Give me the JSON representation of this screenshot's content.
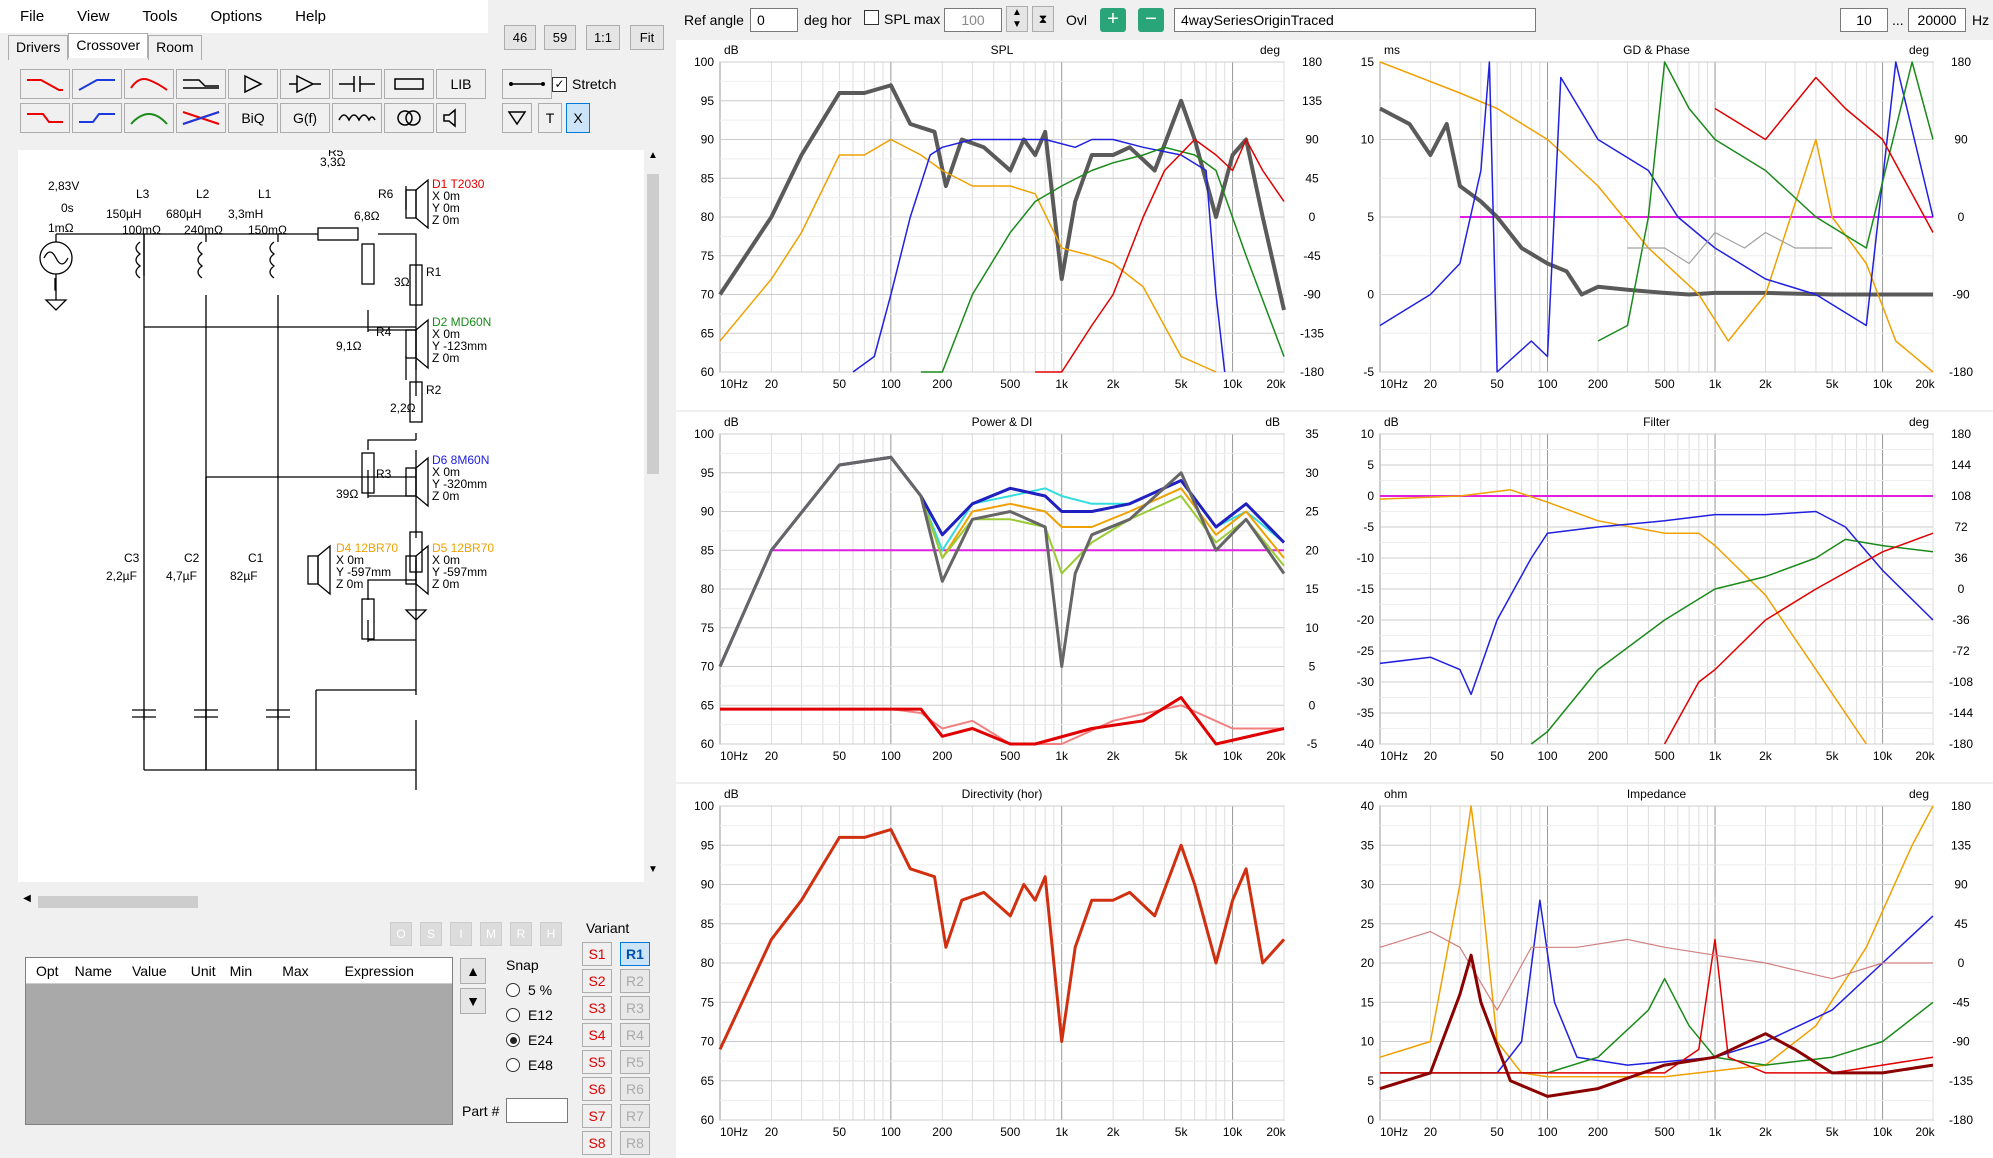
{
  "menu": [
    "File",
    "View",
    "Tools",
    "Options",
    "Help"
  ],
  "zoom_buttons": [
    "46",
    "59",
    "1:1",
    "Fit"
  ],
  "tabs": [
    "Drivers",
    "Crossover",
    "Room"
  ],
  "toolbox": {
    "lib": "LIB",
    "biq": "BiQ",
    "gf": "G(f)",
    "t": "T",
    "x": "X",
    "stretch": "Stretch"
  },
  "schematic": {
    "source": {
      "voltage": "2,83V",
      "phase": "0s",
      "resistance": "1mΩ"
    },
    "inductors": [
      {
        "name": "L3",
        "value": "150µH",
        "res": "100mΩ"
      },
      {
        "name": "L2",
        "value": "680µH",
        "res": "240mΩ"
      },
      {
        "name": "L1",
        "value": "3,3mH",
        "res": "150mΩ"
      }
    ],
    "resistors": [
      {
        "name": "R5",
        "value": "3,3Ω"
      },
      {
        "name": "R6",
        "value": "6,8Ω"
      },
      {
        "name": "R1",
        "value": "3Ω"
      },
      {
        "name": "R4",
        "value": "9,1Ω"
      },
      {
        "name": "R2",
        "value": "2,2Ω"
      },
      {
        "name": "R3",
        "value": "39Ω"
      }
    ],
    "capacitors": [
      {
        "name": "C3",
        "value": "2,2µF"
      },
      {
        "name": "C2",
        "value": "4,7µF"
      },
      {
        "name": "C1",
        "value": "82µF"
      }
    ],
    "drivers": [
      {
        "name": "D1 T2030",
        "color": "#e00000",
        "x": "X 0m",
        "y": "Y 0m",
        "z": "Z 0m"
      },
      {
        "name": "D2 MD60N",
        "color": "#1a8a1a",
        "x": "X 0m",
        "y": "Y -123mm",
        "z": "Z 0m"
      },
      {
        "name": "D6 8M60N",
        "color": "#2020e0",
        "x": "X 0m",
        "y": "Y -320mm",
        "z": "Z 0m"
      },
      {
        "name": "D4 12BR70",
        "color": "#f0a000",
        "x": "X 0m",
        "y": "Y -597mm",
        "z": "Z 0m"
      },
      {
        "name": "D5 12BR70",
        "color": "#f0a000",
        "x": "X 0m",
        "y": "Y -597mm",
        "z": "Z 0m"
      }
    ]
  },
  "opt_grid": {
    "columns": [
      "Opt",
      "Name",
      "Value",
      "Unit",
      "Min",
      "Max",
      "Expression"
    ]
  },
  "lock_buttons": [
    "O",
    "S",
    "I",
    "M",
    "R",
    "H"
  ],
  "snap": {
    "label": "Snap",
    "options": [
      "5 %",
      "E12",
      "E24",
      "E48"
    ],
    "selected": "E24"
  },
  "part_label": "Part #",
  "variant": {
    "label": "Variant",
    "s": [
      "S1",
      "S2",
      "S3",
      "S4",
      "S5",
      "S6",
      "S7",
      "S8"
    ],
    "r": [
      "R1",
      "R2",
      "R3",
      "R4",
      "R5",
      "R6",
      "R7",
      "R8"
    ],
    "active_s": "S1",
    "active_r": "R1"
  },
  "topbar": {
    "ref_angle_label": "Ref angle",
    "ref_angle": "0",
    "deg_hor": "deg hor",
    "spl_max_label": "SPL max",
    "spl_max": "100",
    "ovl": "Ovl",
    "project": "4waySeriesOriginTraced",
    "f_min": "10",
    "dots": "...",
    "f_max": "20000",
    "hz": "Hz"
  },
  "freq_ticks": [
    "10Hz",
    "20",
    "50",
    "100",
    "200",
    "500",
    "1k",
    "2k",
    "5k",
    "10k",
    "20k"
  ],
  "graphs": [
    {
      "id": "spl",
      "title": "SPL",
      "lunit": "dB",
      "runit": "deg",
      "left": [
        "95",
        "90",
        "85",
        "80",
        "75",
        "70",
        "65",
        "60"
      ],
      "ltop": "100",
      "right": [
        "180",
        "135",
        "90",
        "45",
        "0",
        "-45",
        "-90",
        "-135",
        "-180"
      ]
    },
    {
      "id": "gd",
      "title": "GD & Phase",
      "lunit": "ms",
      "runit": "deg",
      "left": [
        "15",
        "10",
        "5",
        "0",
        "-5"
      ],
      "right": [
        "180",
        "90",
        "0",
        "-90",
        "-180"
      ]
    },
    {
      "id": "power",
      "title": "Power & DI",
      "lunit": "dB",
      "runit": "dB",
      "left": [
        "100",
        "95",
        "90",
        "85",
        "80",
        "75",
        "70",
        "65",
        "60"
      ],
      "right": [
        "35",
        "30",
        "25",
        "20",
        "15",
        "10",
        "5",
        "0",
        "-5"
      ]
    },
    {
      "id": "filter",
      "title": "Filter",
      "lunit": "dB",
      "runit": "deg",
      "left": [
        "10",
        "5",
        "0",
        "-5",
        "-10",
        "-15",
        "-20",
        "-25",
        "-30",
        "-35",
        "-40"
      ],
      "right": [
        "180",
        "144",
        "108",
        "72",
        "36",
        "0",
        "-36",
        "-72",
        "-108",
        "-144",
        "-180"
      ]
    },
    {
      "id": "dir",
      "title": "Directivity (hor)",
      "lunit": "dB",
      "runit": "",
      "left": [
        "100",
        "95",
        "90",
        "85",
        "80",
        "75",
        "70",
        "65",
        "60"
      ],
      "right": []
    },
    {
      "id": "imp",
      "title": "Impedance",
      "lunit": "ohm",
      "runit": "deg",
      "left": [
        "40",
        "35",
        "30",
        "25",
        "20",
        "15",
        "10",
        "5",
        "0"
      ],
      "right": [
        "180",
        "135",
        "90",
        "45",
        "0",
        "-45",
        "-90",
        "-135",
        "-180"
      ]
    }
  ]
}
